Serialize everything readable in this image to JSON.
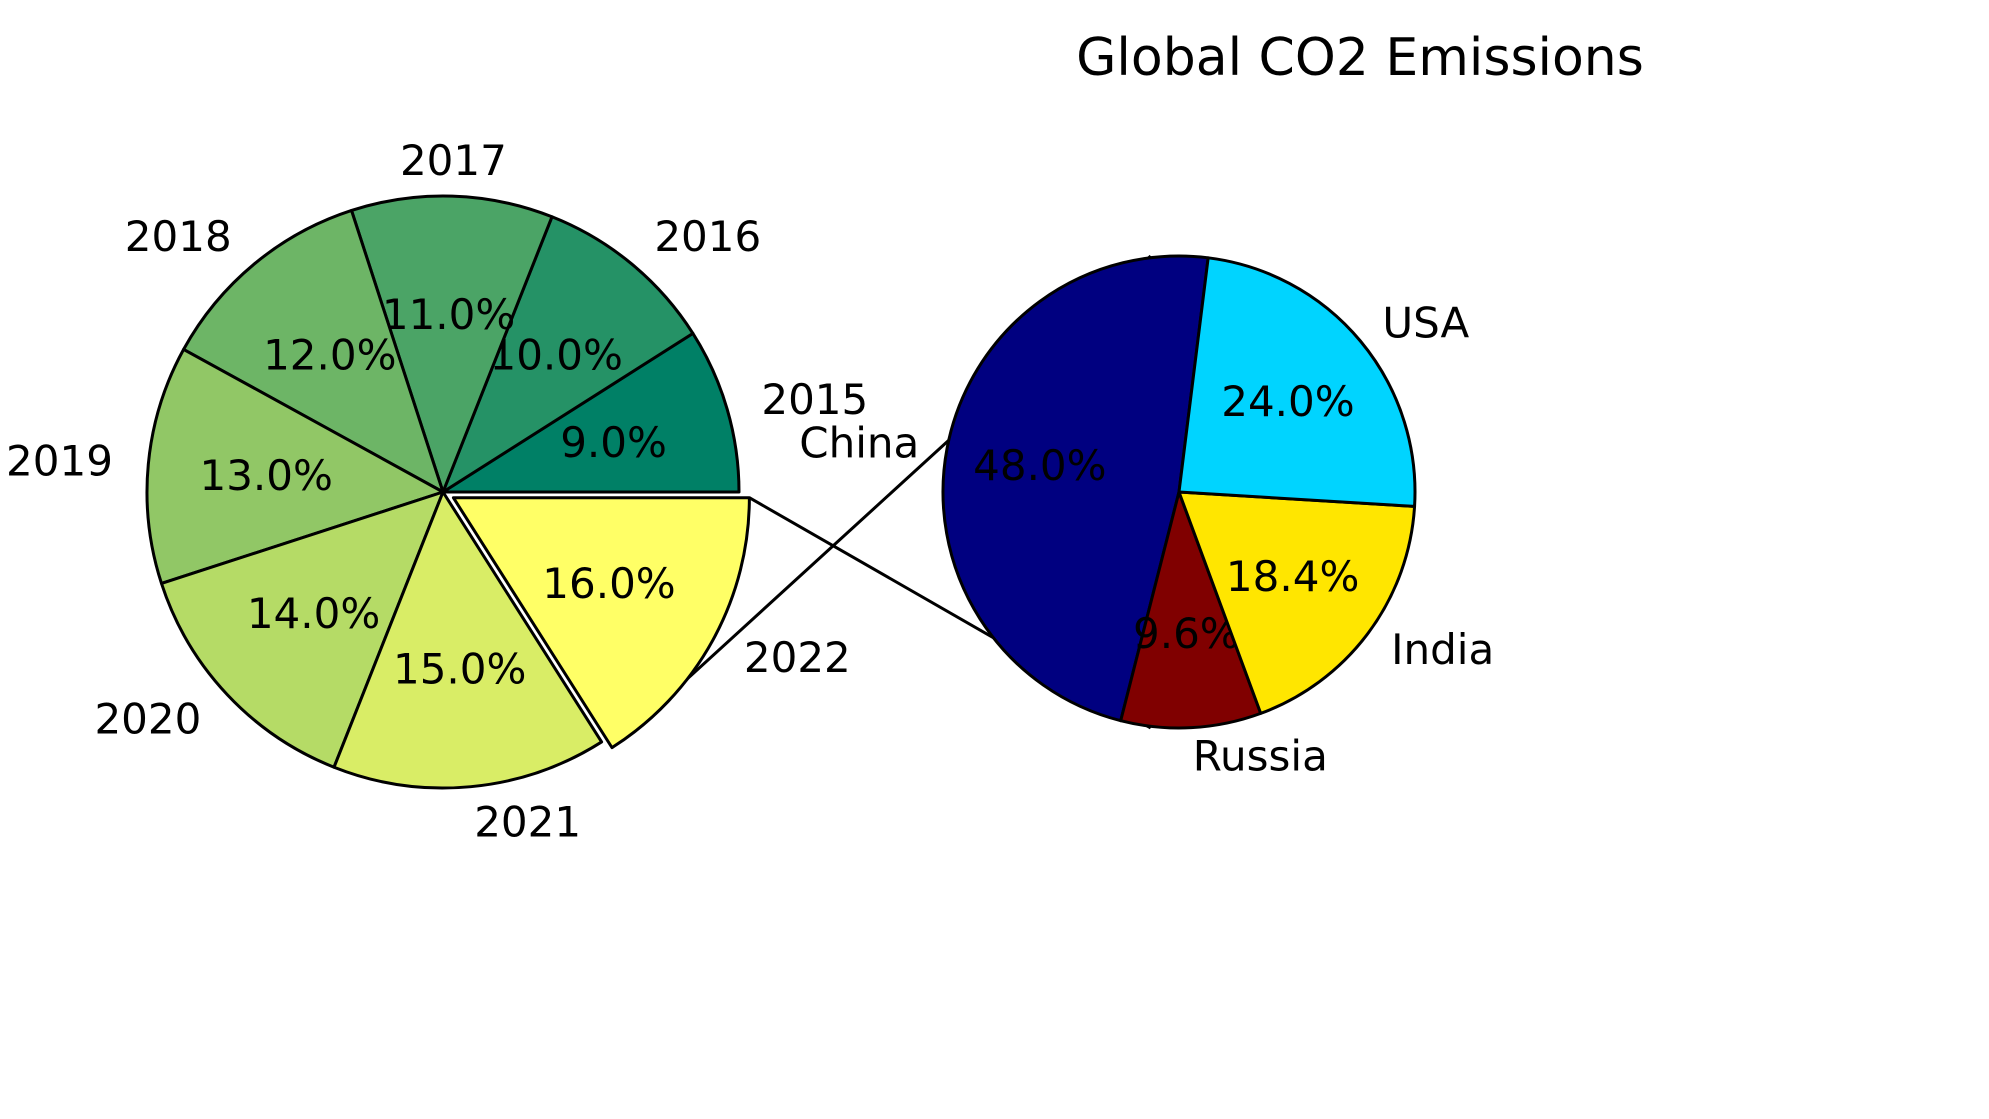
{
  "chart_data": [
    {
      "type": "pie",
      "title": "Global CO2 Emissions",
      "categories": [
        "2015",
        "2016",
        "2017",
        "2018",
        "2019",
        "2020",
        "2021",
        "2022"
      ],
      "values": [
        9,
        10,
        11,
        12,
        13,
        14,
        15,
        16
      ],
      "percent_labels": [
        "9.0%",
        "10.0%",
        "11.0%",
        "12.0%",
        "13.0%",
        "14.0%",
        "15.0%",
        "16.0%"
      ],
      "colors": [
        "#008066",
        "#259266",
        "#4ba466",
        "#6db566",
        "#91c766",
        "#b5db66",
        "#d9ed66",
        "#ffff66"
      ],
      "exploded": "2022"
    },
    {
      "type": "pie",
      "categories": [
        "China",
        "Russia",
        "India",
        "USA"
      ],
      "values": [
        48.0,
        9.6,
        18.4,
        24.0
      ],
      "percent_labels": [
        "48.0%",
        "9.6%",
        "18.4%",
        "24.0%"
      ],
      "colors": [
        "#000080",
        "#800000",
        "#ffe600",
        "#00d4ff"
      ]
    }
  ]
}
